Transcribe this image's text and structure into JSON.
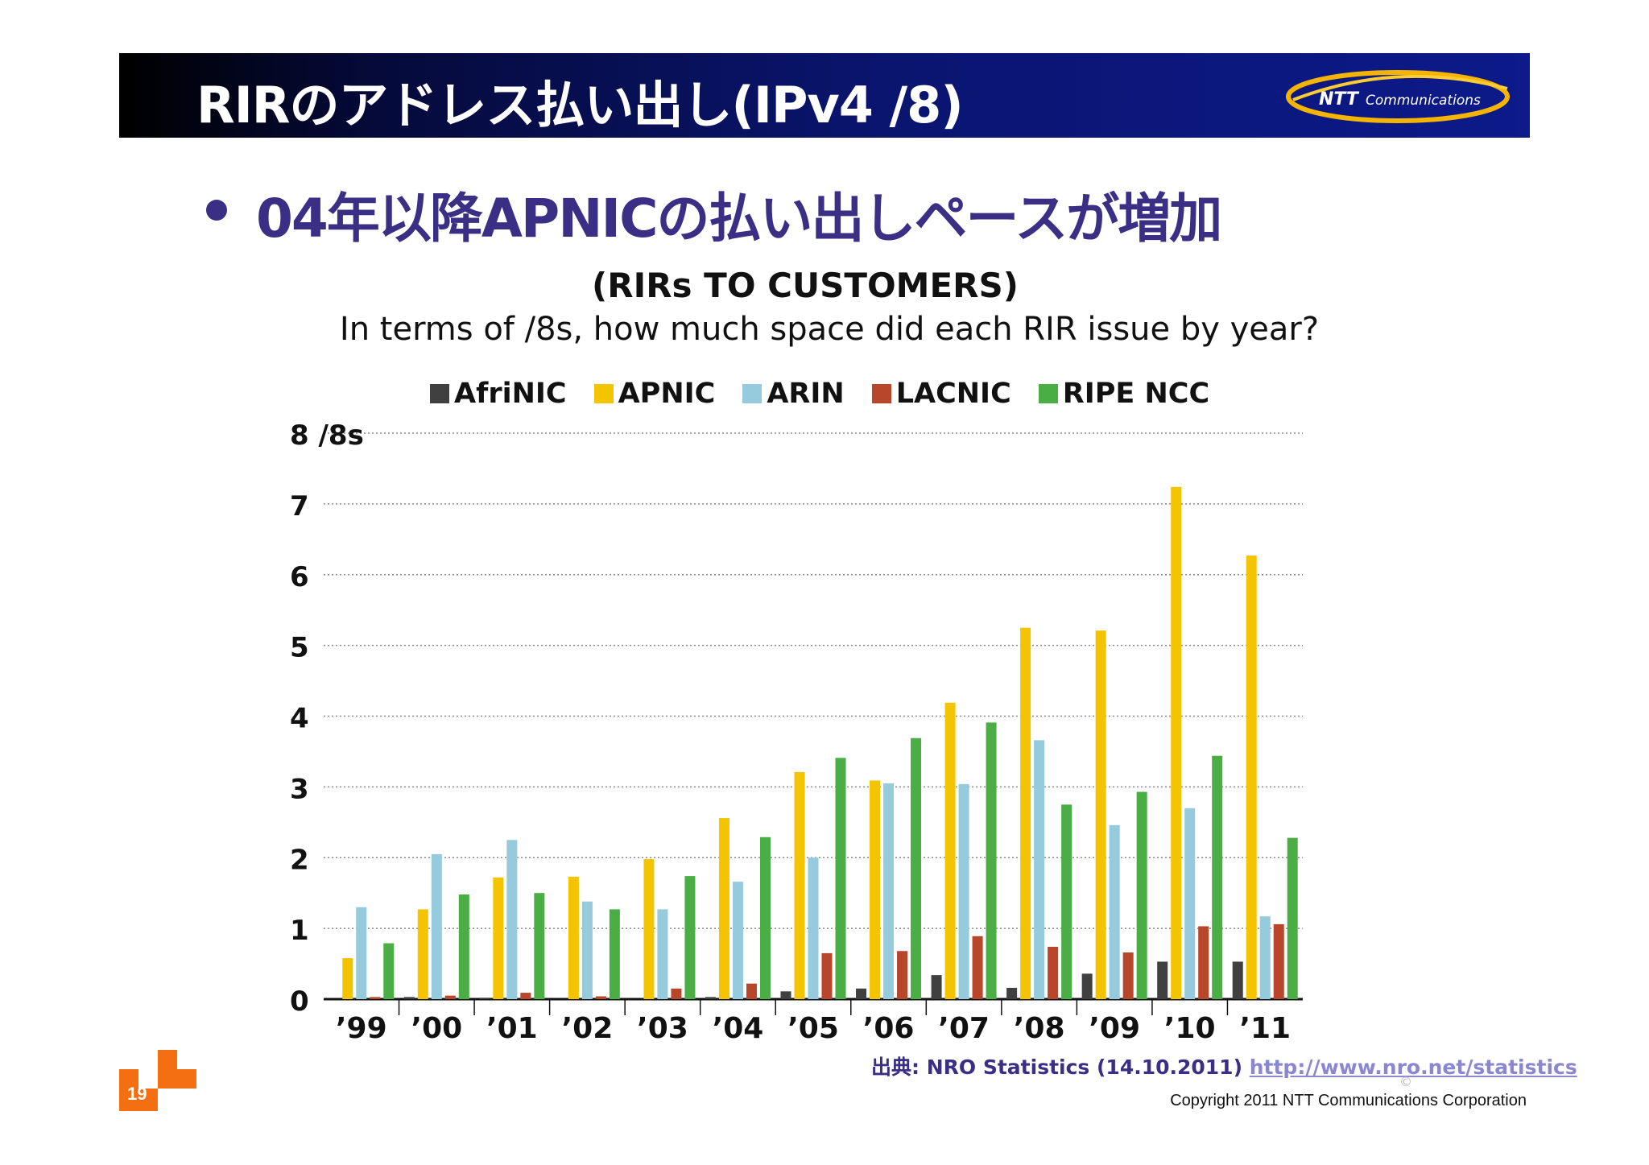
{
  "header": {
    "title": "RIRのアドレス払い出し(IPv4 /8)",
    "logo_text": "NTT Communications"
  },
  "bullet": {
    "text": "04年以降APNICの払い出しペースが増加"
  },
  "chart_data": {
    "type": "bar",
    "title": "(RIRs TO CUSTOMERS)",
    "subtitle": "In terms of /8s, how much space did each RIR issue by year?",
    "ylabel": "8 /8s",
    "ylim": [
      0,
      8
    ],
    "yticks": [
      "0",
      "1",
      "2",
      "3",
      "4",
      "5",
      "6",
      "7"
    ],
    "grid": true,
    "legend_position": "top",
    "categories": [
      "’99",
      "’00",
      "’01",
      "’02",
      "’03",
      "’04",
      "’05",
      "’06",
      "’07",
      "’08",
      "’09",
      "’10",
      "’11"
    ],
    "series": [
      {
        "name": "AfriNIC",
        "color": "#404040",
        "values": [
          0,
          0.03,
          0.02,
          0,
          0,
          0.03,
          0.11,
          0.15,
          0.34,
          0.16,
          0.36,
          0.53,
          0.53
        ]
      },
      {
        "name": "APNIC",
        "color": "#f5c400",
        "values": [
          0.58,
          1.27,
          1.72,
          1.73,
          1.98,
          2.56,
          3.21,
          3.09,
          4.19,
          5.25,
          5.21,
          7.24,
          6.27
        ]
      },
      {
        "name": "ARIN",
        "color": "#96cadd",
        "values": [
          1.3,
          2.05,
          2.25,
          1.38,
          1.27,
          1.66,
          2.0,
          3.05,
          3.04,
          3.66,
          2.46,
          2.7,
          1.17
        ]
      },
      {
        "name": "LACNIC",
        "color": "#b8462a",
        "values": [
          0.03,
          0.05,
          0.09,
          0.04,
          0.15,
          0.22,
          0.65,
          0.68,
          0.89,
          0.74,
          0.66,
          1.03,
          1.06
        ]
      },
      {
        "name": "RIPE NCC",
        "color": "#4aae45",
        "values": [
          0.79,
          1.48,
          1.5,
          1.27,
          1.74,
          2.29,
          3.41,
          3.69,
          3.91,
          2.75,
          2.93,
          3.44,
          2.28
        ]
      }
    ]
  },
  "source": {
    "label": "出典:",
    "text": "NRO Statistics (14.10.2011)",
    "link": "http://www.nro.net/statistics"
  },
  "footer": {
    "copyright_symbol": "©",
    "copyright": "Copyright 2011 NTT Communications Corporation",
    "page_number": "19"
  },
  "colors": {
    "header_bg": "#0a1570",
    "bullet_text": "#3a2f85",
    "accent_orange": "#f36f11"
  }
}
